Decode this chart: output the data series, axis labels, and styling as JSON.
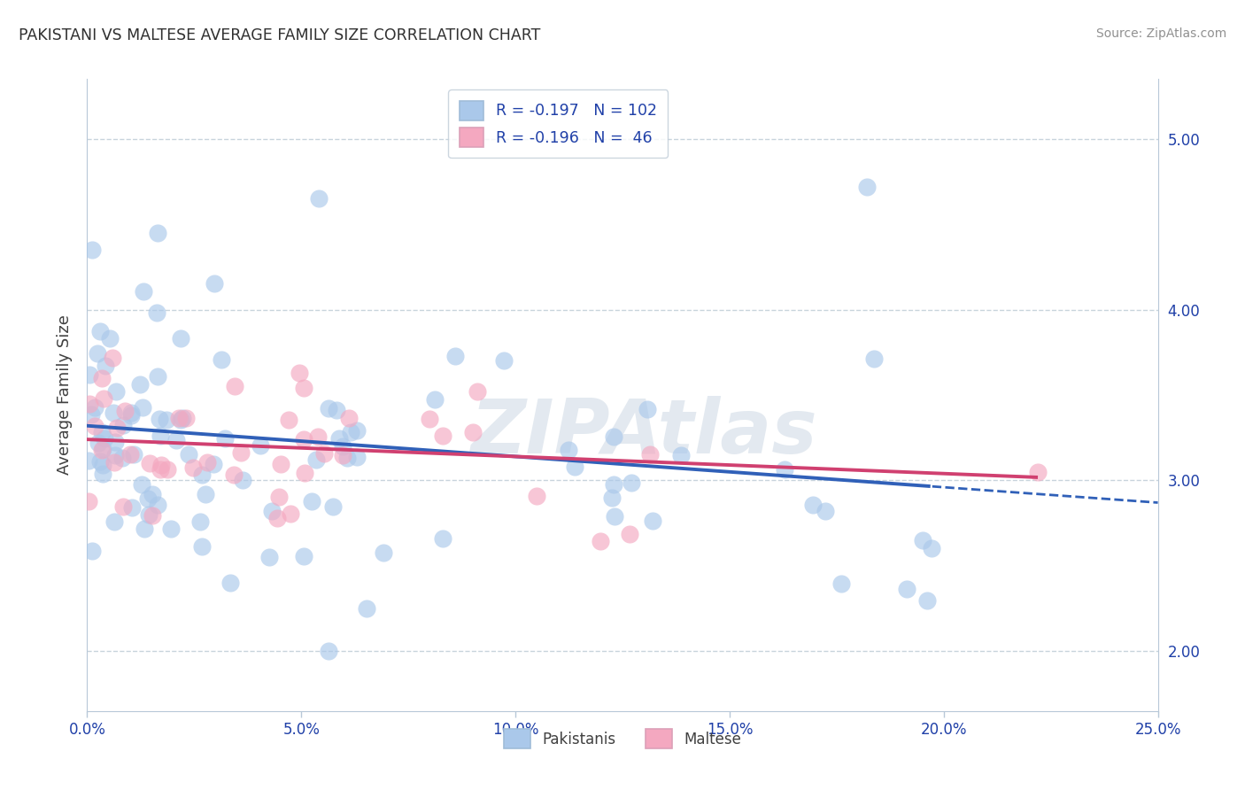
{
  "title": "PAKISTANI VS MALTESE AVERAGE FAMILY SIZE CORRELATION CHART",
  "source": "Source: ZipAtlas.com",
  "ylabel": "Average Family Size",
  "xlim": [
    0.0,
    0.25
  ],
  "ylim": [
    1.65,
    5.35
  ],
  "yticks_right": [
    2.0,
    3.0,
    4.0,
    5.0
  ],
  "xtick_values": [
    0.0,
    0.05,
    0.1,
    0.15,
    0.2,
    0.25
  ],
  "xtick_labels": [
    "0.0%",
    "5.0%",
    "10.0%",
    "15.0%",
    "20.0%",
    "25.0%"
  ],
  "pakistani_color": "#aac8ea",
  "maltese_color": "#f4a8c0",
  "pakistani_line_color": "#3060b8",
  "maltese_line_color": "#d04070",
  "watermark": "ZIPAtlas",
  "watermark_color": "#ccd8e4",
  "background_color": "#ffffff",
  "grid_color": "#c8d4dc",
  "title_color": "#303030",
  "axis_label_color": "#404040",
  "tick_color": "#2040a8",
  "source_color": "#909090",
  "legend_r1": "R = -0.197   N = 102",
  "legend_r2": "R = -0.196   N =  46",
  "legend_color1": "#aac8ea",
  "legend_color2": "#f4a8c0",
  "bottom_legend1": "Pakistanis",
  "bottom_legend2": "Maltese",
  "pakistani_N": 102,
  "maltese_N": 46
}
